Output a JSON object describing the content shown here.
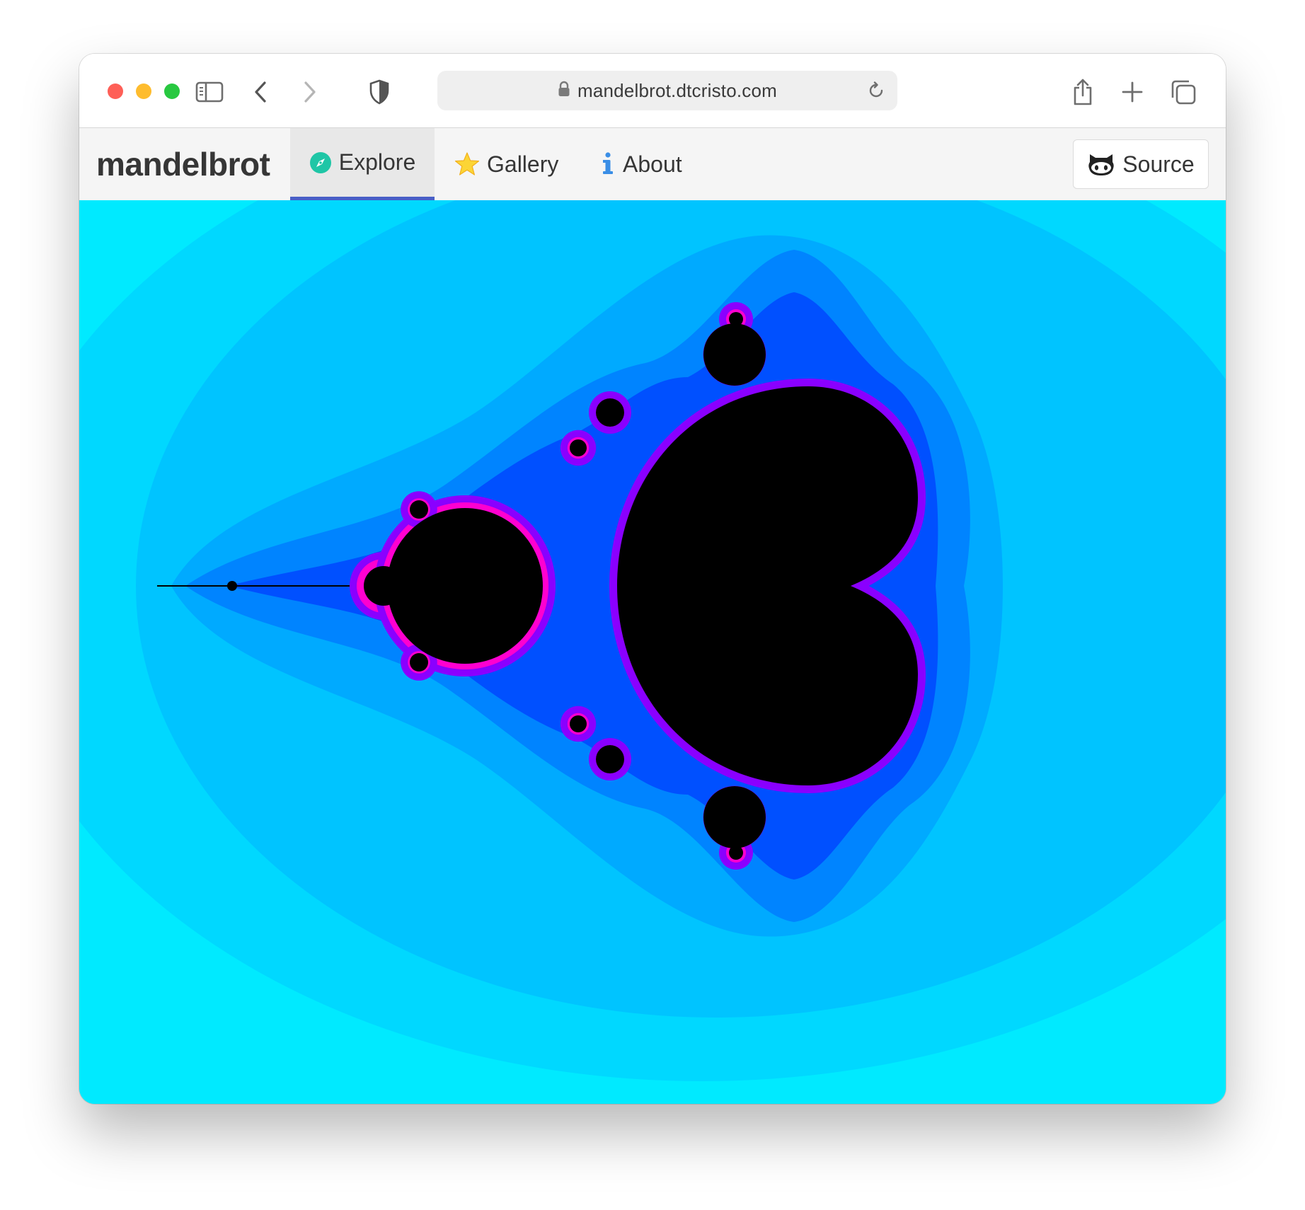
{
  "browser": {
    "url": "mandelbrot.dtcristo.com",
    "icons": {
      "sidebar": "sidebar-icon",
      "back": "chevron-left-icon",
      "forward": "chevron-right-icon",
      "privacy": "shield-icon",
      "lock": "lock-icon",
      "reload": "reload-icon",
      "share": "share-icon",
      "new_tab": "plus-icon",
      "tabs": "tab-overview-icon"
    }
  },
  "navbar": {
    "brand": "mandelbrot",
    "items": [
      {
        "label": "Explore",
        "icon": "compass-icon",
        "active": true
      },
      {
        "label": "Gallery",
        "icon": "star-icon",
        "active": false
      },
      {
        "label": "About",
        "icon": "info-icon",
        "active": false
      }
    ],
    "source_button": {
      "label": "Source",
      "icon": "github-icon"
    }
  },
  "fractal": {
    "colors": {
      "outer": "#00eaff",
      "band1": "#00d8ff",
      "band2": "#00c4ff",
      "band3": "#00aaff",
      "band4": "#0084ff",
      "band5": "#0050ff",
      "edge1": "#8a00ff",
      "edge2": "#ff00d0",
      "interior": "#000000"
    }
  }
}
